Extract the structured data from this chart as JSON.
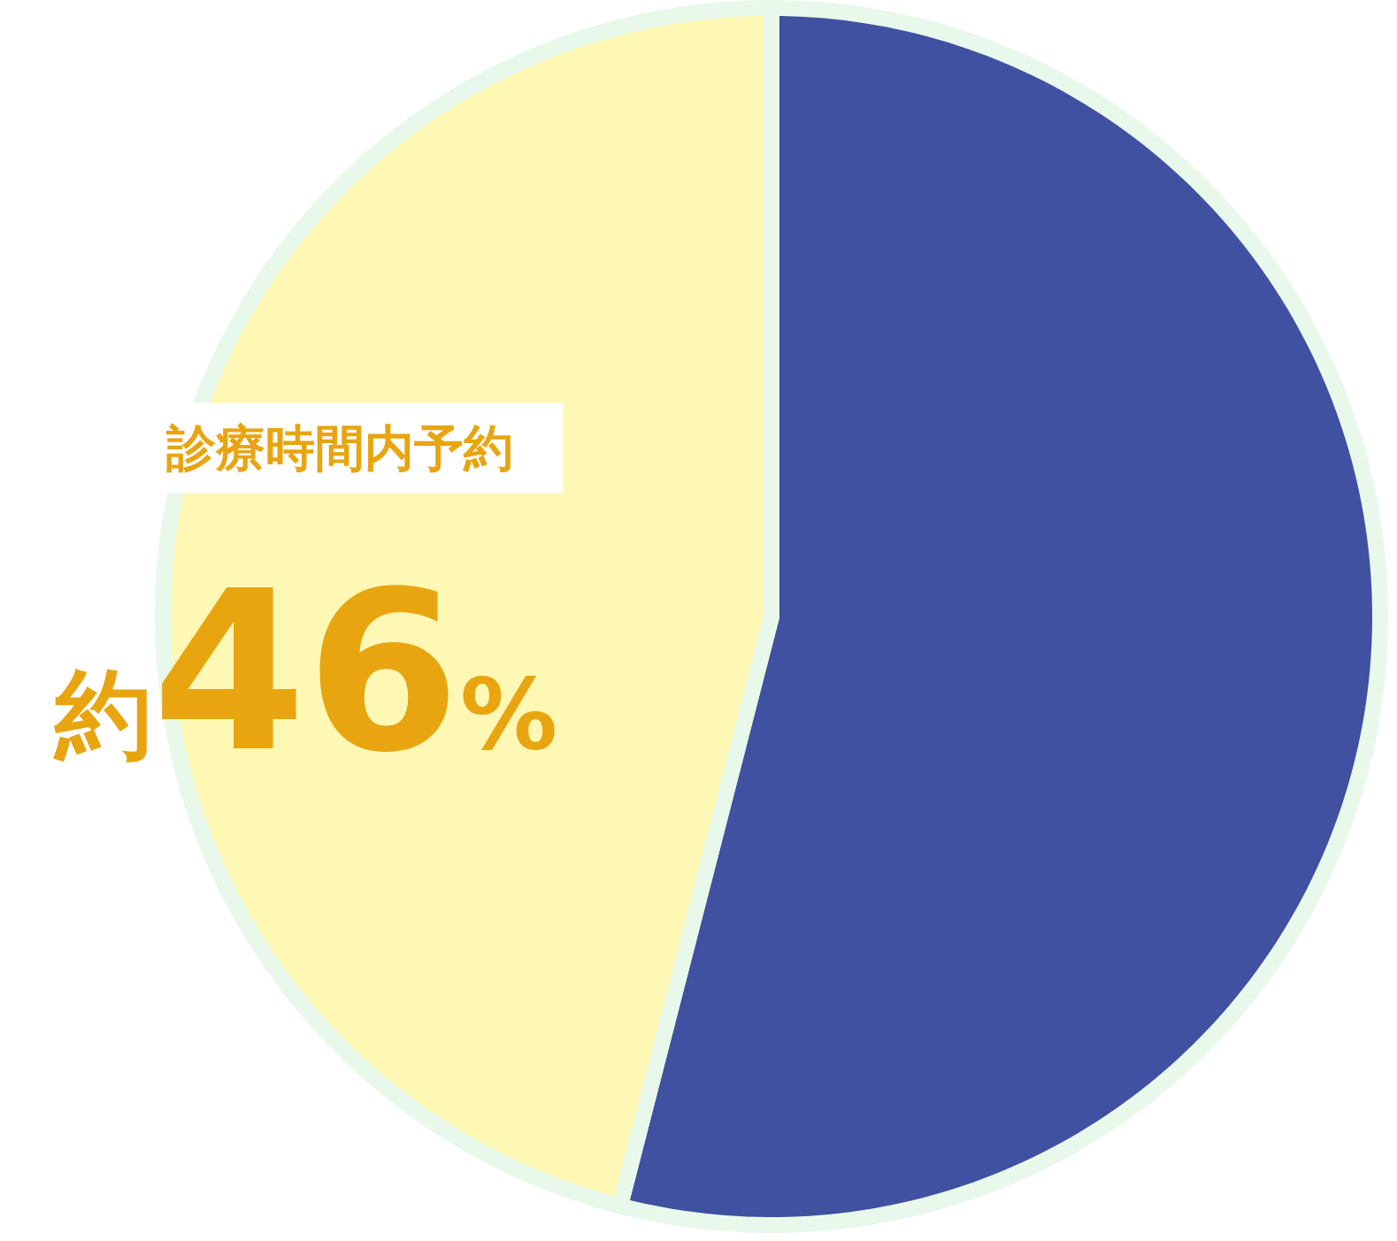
{
  "chart_data": {
    "type": "pie",
    "categories": [
      null,
      "診療時間内予約"
    ],
    "values": [
      54,
      46
    ],
    "colors": [
      "#3f51a0",
      "#fef8b4"
    ],
    "value_labels": [
      null,
      "約46%"
    ]
  }
}
